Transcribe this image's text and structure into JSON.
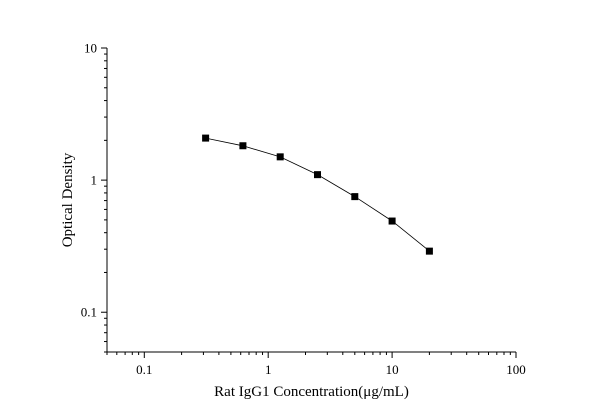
{
  "chart_data": {
    "type": "scatter",
    "title": "",
    "xlabel": "Rat IgG1 Concentration(μg/mL)",
    "ylabel": "Optical Density",
    "xscale": "log",
    "yscale": "log",
    "xlim": [
      0.05,
      100
    ],
    "ylim": [
      0.05,
      10
    ],
    "x_ticks": [
      0.1,
      1,
      10,
      100
    ],
    "x_tick_labels": [
      "0.1",
      "1",
      "10",
      "100"
    ],
    "y_ticks": [
      0.1,
      1,
      10
    ],
    "y_tick_labels": [
      "0.1",
      "1",
      "10"
    ],
    "grid": false,
    "legend": "none",
    "series": [
      {
        "marker": "square",
        "connected": true,
        "color": "#000000",
        "x": [
          0.3125,
          0.625,
          1.25,
          2.5,
          5,
          10,
          20
        ],
        "y": [
          2.08,
          1.82,
          1.5,
          1.1,
          0.75,
          0.49,
          0.29
        ]
      }
    ]
  }
}
